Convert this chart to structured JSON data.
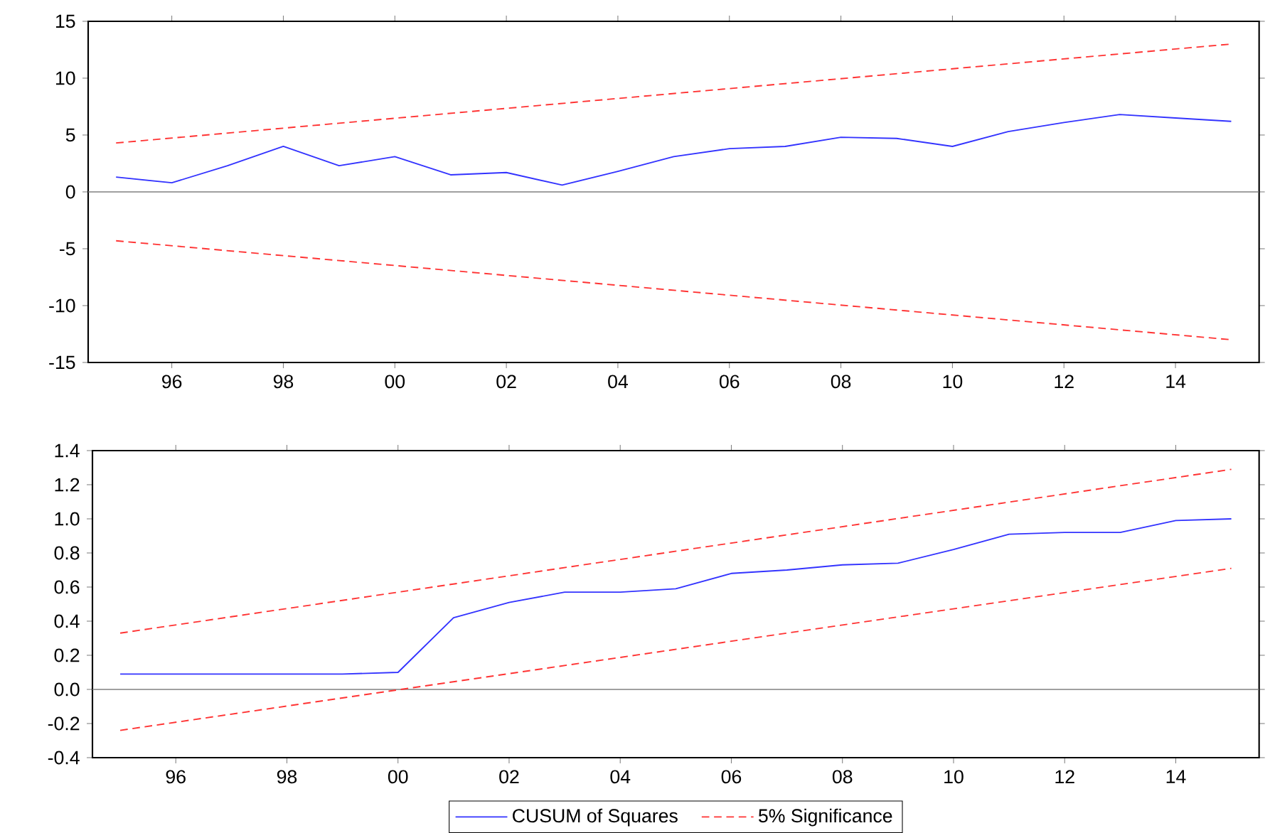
{
  "chart_data": [
    {
      "type": "line",
      "xlim": [
        1994.5,
        2015.5
      ],
      "ylim": [
        -15,
        15
      ],
      "yticks": [
        -15,
        -10,
        -5,
        0,
        5,
        10,
        15
      ],
      "xticks": [
        {
          "value": 1996,
          "label": "96"
        },
        {
          "value": 1998,
          "label": "98"
        },
        {
          "value": 2000,
          "label": "00"
        },
        {
          "value": 2002,
          "label": "02"
        },
        {
          "value": 2004,
          "label": "04"
        },
        {
          "value": 2006,
          "label": "06"
        },
        {
          "value": 2008,
          "label": "08"
        },
        {
          "value": 2010,
          "label": "10"
        },
        {
          "value": 2012,
          "label": "12"
        },
        {
          "value": 2014,
          "label": "14"
        }
      ],
      "ref_lines": [
        {
          "axis": "y",
          "value": 0,
          "color": "#808080"
        }
      ],
      "series": [
        {
          "color": "#3333ff",
          "x": [
            1995,
            1996,
            1997,
            1998,
            1999,
            2000,
            2001,
            2002,
            2003,
            2004,
            2005,
            2006,
            2007,
            2008,
            2009,
            2010,
            2011,
            2012,
            2013,
            2014,
            2015
          ],
          "values": [
            1.3,
            0.8,
            2.3,
            4.0,
            2.3,
            3.1,
            1.5,
            1.7,
            0.6,
            1.8,
            3.1,
            3.8,
            4.0,
            4.8,
            4.7,
            4.0,
            5.3,
            6.1,
            6.8,
            6.5,
            6.2
          ]
        },
        {
          "color": "#ff3333",
          "line_style": "dashed",
          "x": [
            1995,
            2015
          ],
          "values": [
            4.3,
            13.0
          ]
        },
        {
          "color": "#ff3333",
          "line_style": "dashed",
          "x": [
            1995,
            2015
          ],
          "values": [
            -4.3,
            -13.0
          ]
        }
      ]
    },
    {
      "type": "line",
      "xlim": [
        1994.5,
        2015.5
      ],
      "ylim": [
        -0.4,
        1.4
      ],
      "legend": "bottom",
      "yticks": [
        {
          "value": -0.4,
          "label": "-0.4"
        },
        {
          "value": -0.2,
          "label": "-0.2"
        },
        {
          "value": 0,
          "label": "0.0"
        },
        {
          "value": 0.2,
          "label": "0.2"
        },
        {
          "value": 0.4,
          "label": "0.4"
        },
        {
          "value": 0.6,
          "label": "0.6"
        },
        {
          "value": 0.8,
          "label": "0.8"
        },
        {
          "value": 1.0,
          "label": "1.0"
        },
        {
          "value": 1.2,
          "label": "1.2"
        },
        {
          "value": 1.4,
          "label": "1.4"
        }
      ],
      "xticks": [
        {
          "value": 1996,
          "label": "96"
        },
        {
          "value": 1998,
          "label": "98"
        },
        {
          "value": 2000,
          "label": "00"
        },
        {
          "value": 2002,
          "label": "02"
        },
        {
          "value": 2004,
          "label": "04"
        },
        {
          "value": 2006,
          "label": "06"
        },
        {
          "value": 2008,
          "label": "08"
        },
        {
          "value": 2010,
          "label": "10"
        },
        {
          "value": 2012,
          "label": "12"
        },
        {
          "value": 2014,
          "label": "14"
        }
      ],
      "ref_lines": [
        {
          "axis": "y",
          "value": 0,
          "color": "#808080"
        }
      ],
      "series": [
        {
          "name": "CUSUM of Squares",
          "color": "#3333ff",
          "x": [
            1995,
            1996,
            1997,
            1998,
            1999,
            2000,
            2001,
            2002,
            2003,
            2004,
            2005,
            2006,
            2007,
            2008,
            2009,
            2010,
            2011,
            2012,
            2013,
            2014,
            2015
          ],
          "values": [
            0.09,
            0.09,
            0.09,
            0.09,
            0.09,
            0.1,
            0.42,
            0.51,
            0.57,
            0.57,
            0.59,
            0.68,
            0.7,
            0.73,
            0.74,
            0.82,
            0.91,
            0.92,
            0.92,
            0.99,
            1.0
          ]
        },
        {
          "name": "5% Significance",
          "color": "#ff3333",
          "line_style": "dashed",
          "x": [
            1995,
            2015
          ],
          "values": [
            0.33,
            1.29
          ]
        },
        {
          "color": "#ff3333",
          "line_style": "dashed",
          "x": [
            1995,
            2015
          ],
          "values": [
            -0.24,
            0.71
          ]
        }
      ]
    }
  ]
}
